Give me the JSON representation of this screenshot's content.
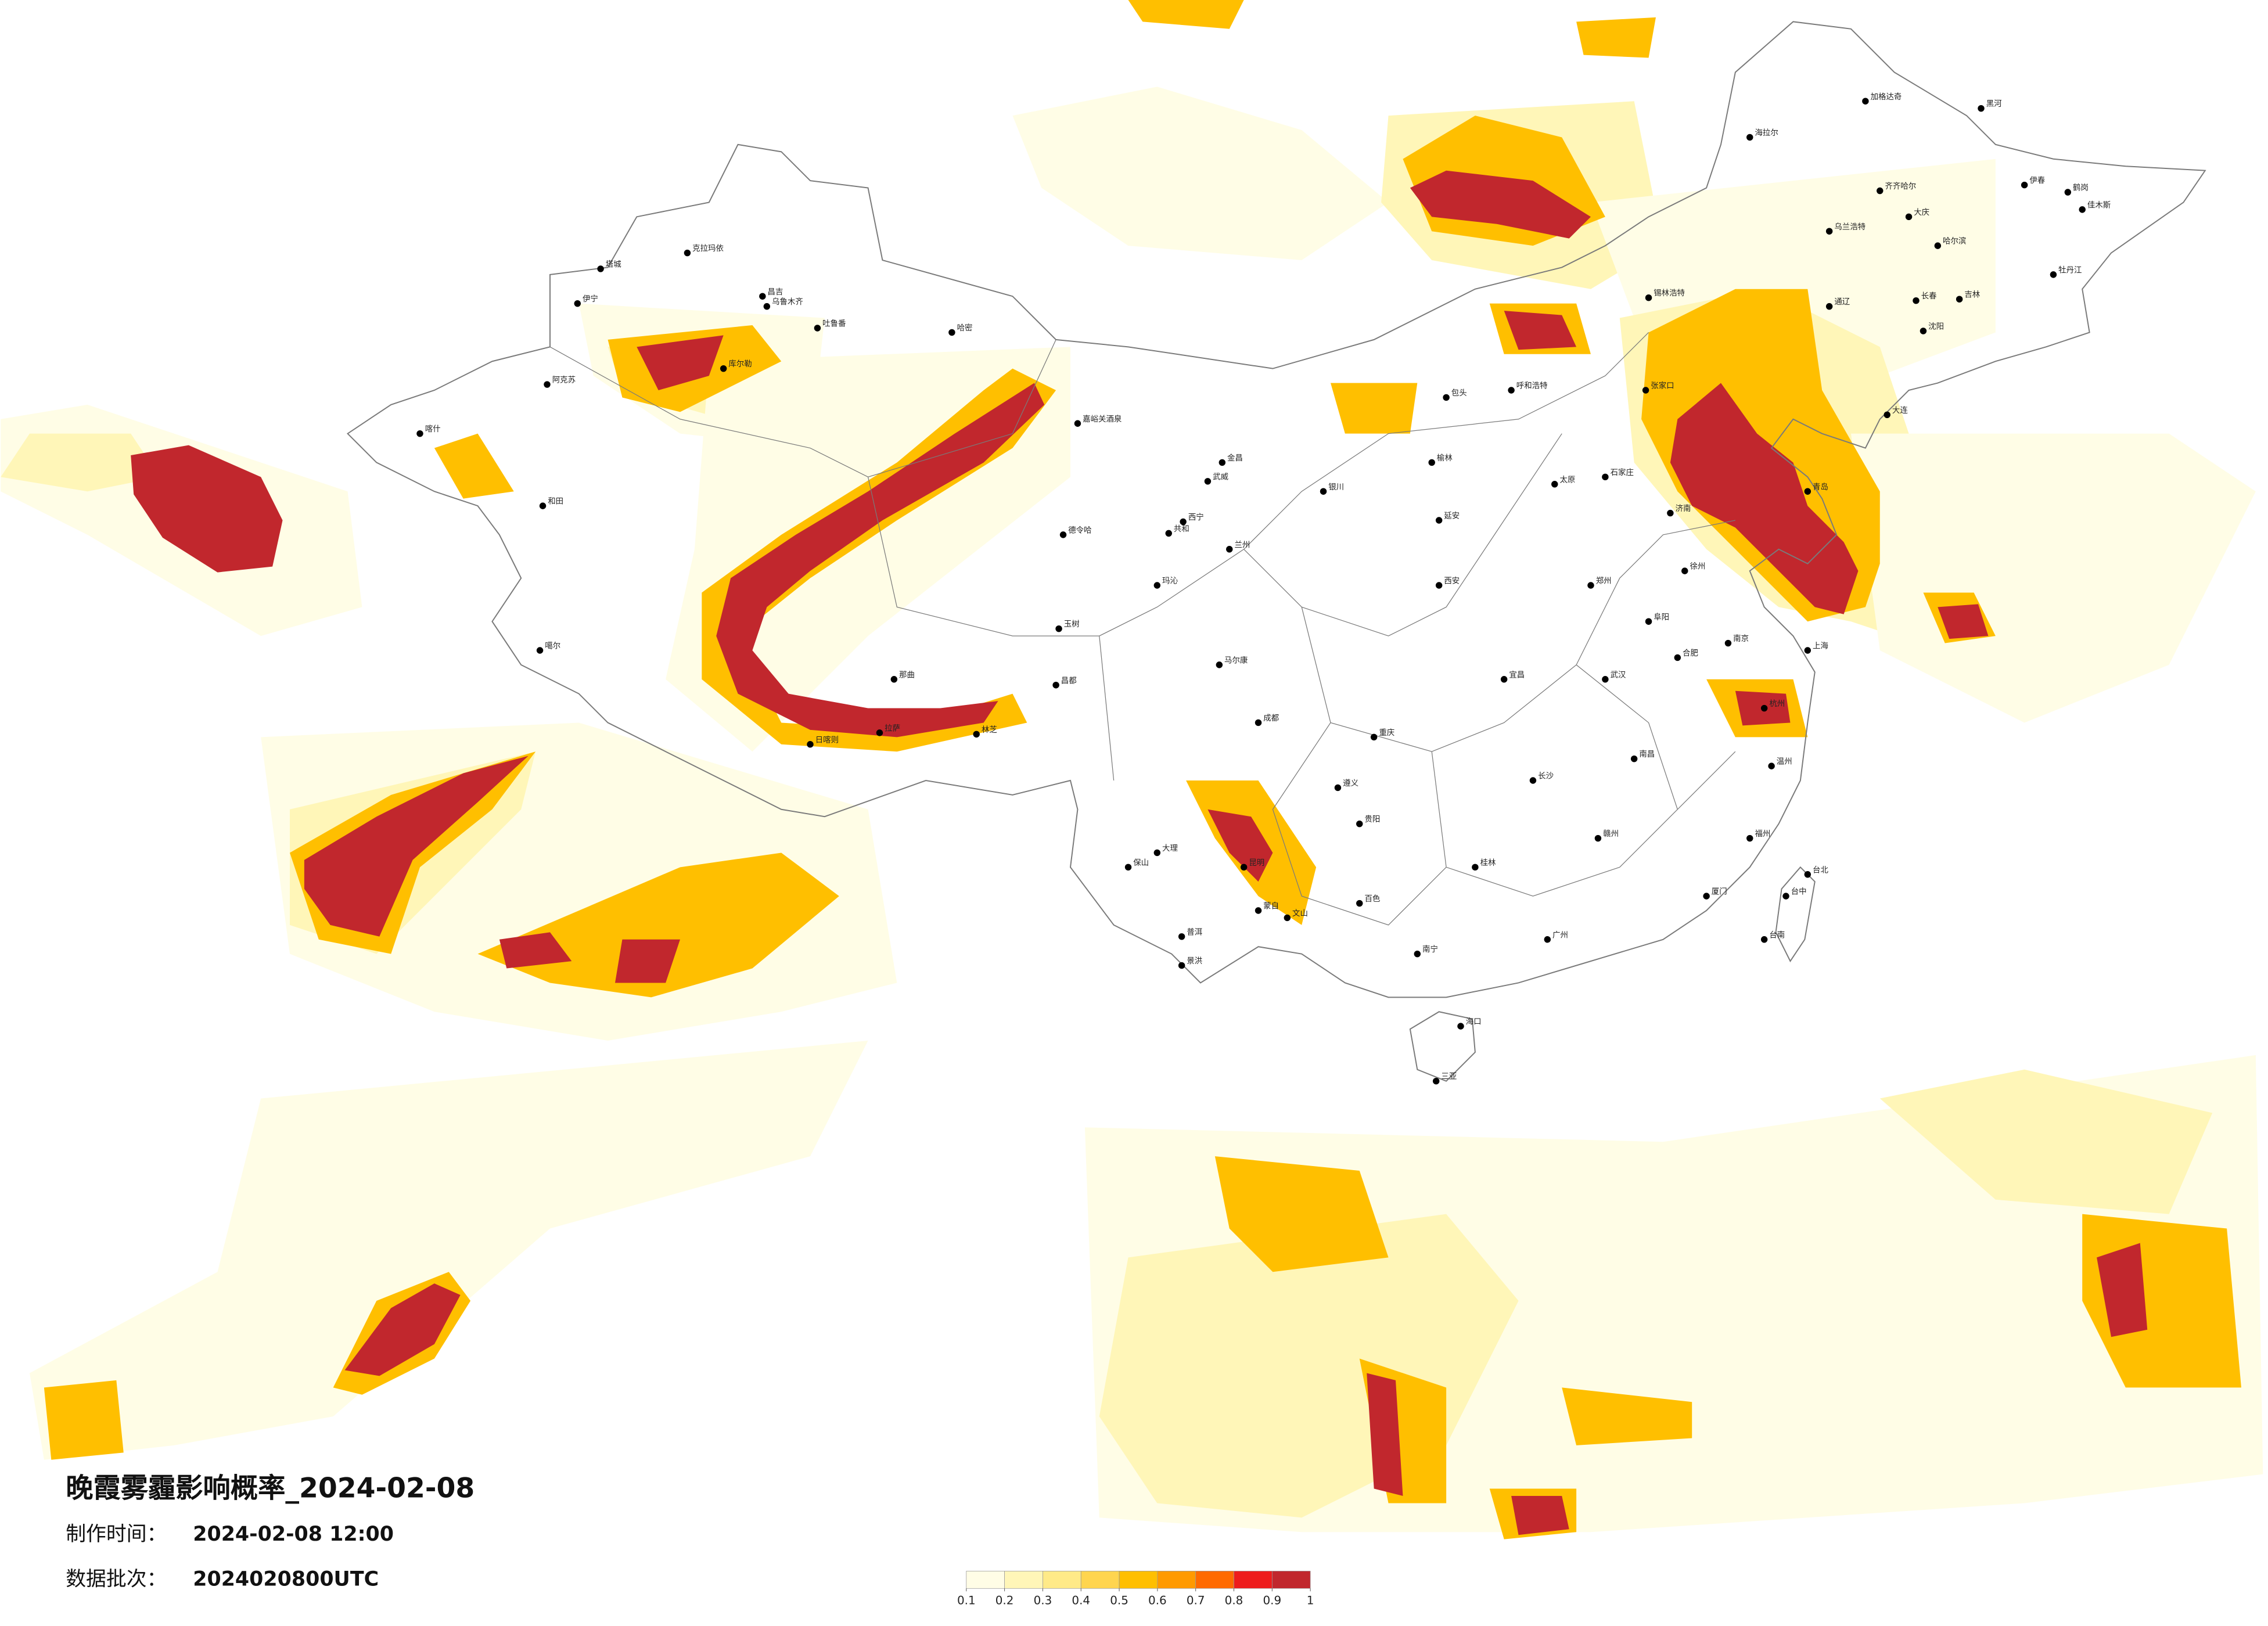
{
  "title": "晚霞雾霾影响概率_2024-02-08",
  "produced": {
    "label": "制作时间：",
    "value": "2024-02-08 12:00"
  },
  "batch": {
    "label": "数据批次：",
    "value": "2024020800UTC"
  },
  "legend": {
    "colors": [
      "#fffde6",
      "#fff6b8",
      "#ffea88",
      "#ffd54f",
      "#ffbf00",
      "#ff9a00",
      "#ff6a00",
      "#ee1c1c",
      "#c1272d"
    ],
    "ticks": [
      0.1,
      0.2,
      0.3,
      0.4,
      0.5,
      0.6,
      0.7,
      0.8,
      0.9,
      1
    ]
  },
  "cities": [
    "克拉玛依",
    "塔城",
    "伊宁",
    "昌吉",
    "乌鲁木齐",
    "吐鲁番",
    "哈密",
    "库尔勒",
    "阿克苏",
    "喀什",
    "和田",
    "噶尔",
    "日喀则",
    "拉萨",
    "林芝",
    "那曲",
    "昌都",
    "玉树",
    "德令哈",
    "嘉峪关酒泉",
    "金昌",
    "武威",
    "西宁",
    "兰州",
    "银川",
    "共和",
    "玛沁",
    "马尔康",
    "成都",
    "呼和浩特",
    "包头",
    "张家口",
    "海拉尔",
    "加格达奇",
    "黑河",
    "齐齐哈尔",
    "大庆",
    "哈尔滨",
    "长春",
    "吉林",
    "伊春",
    "鹤岗",
    "佳木斯",
    "牡丹江",
    "锡林浩特",
    "乌兰浩特",
    "通辽",
    "沈阳",
    "大连",
    "太原",
    "石家庄",
    "济南",
    "郑州",
    "西安",
    "武汉",
    "长沙",
    "南昌",
    "合肥",
    "南京",
    "上海",
    "杭州",
    "温州",
    "福州",
    "厦门",
    "台北",
    "台中",
    "台南",
    "广州",
    "南宁",
    "海口",
    "三亚",
    "贵阳",
    "昆明",
    "重庆",
    "大理",
    "保山",
    "普洱",
    "景洪",
    "蒙自",
    "文山",
    "百色",
    "桂林",
    "赣州",
    "遵义",
    "宜昌",
    "延安",
    "榆林",
    "阜阳",
    "徐州",
    "青岛"
  ]
}
